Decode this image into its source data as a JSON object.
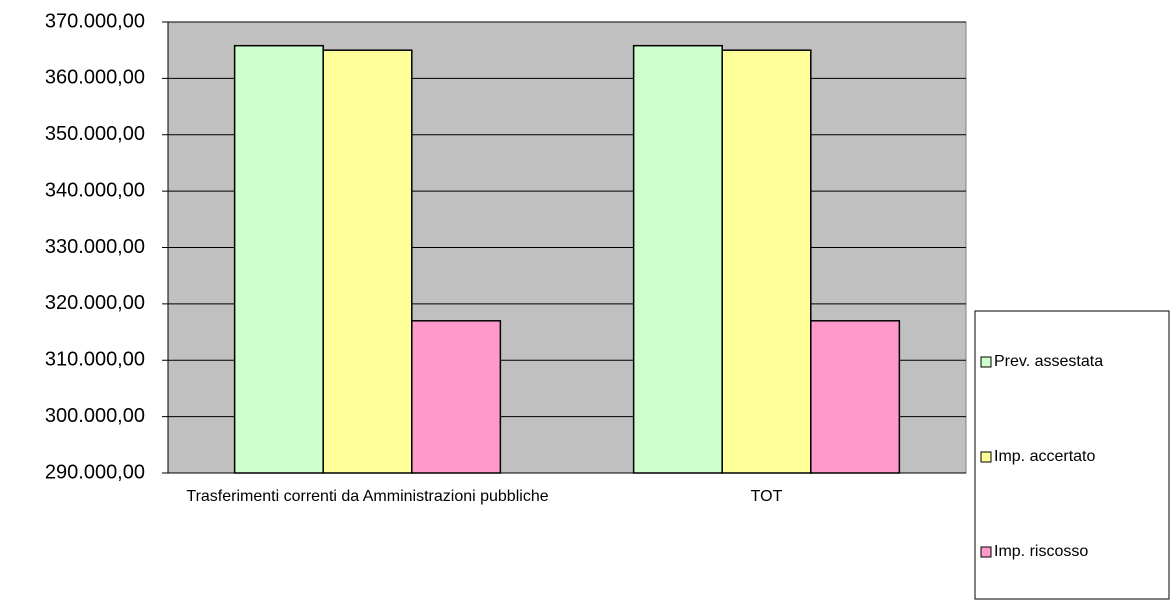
{
  "chart_data": {
    "type": "bar",
    "categories": [
      "Trasferimenti correnti da Amministrazioni pubbliche",
      "TOT"
    ],
    "series": [
      {
        "name": "Prev. assestata",
        "color": "#ccffcc",
        "values": [
          365800,
          365800
        ]
      },
      {
        "name": "Imp. accertato",
        "color": "#ffff99",
        "values": [
          365000,
          365000
        ]
      },
      {
        "name": "Imp. riscosso",
        "color": "#ff99cc",
        "values": [
          317000,
          317000
        ]
      }
    ],
    "ylim": [
      290000,
      370000
    ],
    "yticks": [
      {
        "value": 290000,
        "label": "290.000,00"
      },
      {
        "value": 300000,
        "label": "300.000,00"
      },
      {
        "value": 310000,
        "label": "310.000,00"
      },
      {
        "value": 320000,
        "label": "320.000,00"
      },
      {
        "value": 330000,
        "label": "330.000,00"
      },
      {
        "value": 340000,
        "label": "340.000,00"
      },
      {
        "value": 350000,
        "label": "350.000,00"
      },
      {
        "value": 360000,
        "label": "360.000,00"
      },
      {
        "value": 370000,
        "label": "370.000,00"
      }
    ],
    "grid": true,
    "legend": "right"
  }
}
